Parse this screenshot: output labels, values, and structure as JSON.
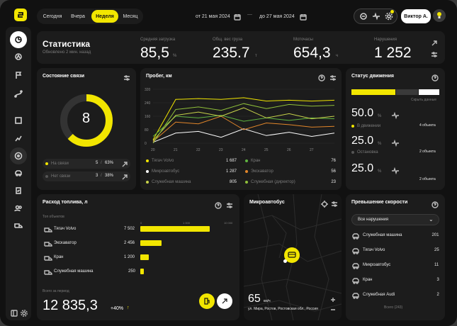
{
  "topbar": {
    "periods": [
      "Сегодня",
      "Вчера",
      "Неделя",
      "Месяц"
    ],
    "active_period": "Неделя",
    "date_from": "от 21 мая 2024",
    "date_to": "до 27 мая 2024",
    "user": "Виктор А."
  },
  "stats": {
    "title": "Статистика",
    "updated": "Обновлено 2 мин. назад",
    "items": [
      {
        "label": "Средняя загрузка",
        "value": "85,5",
        "unit": "%"
      },
      {
        "label": "Общ. вес груза",
        "value": "235.7",
        "unit": "т"
      },
      {
        "label": "Моточасы",
        "value": "654,3",
        "unit": "ч"
      },
      {
        "label": "Нарушения",
        "value": "1 252",
        "unit": ""
      }
    ]
  },
  "connection": {
    "title": "Состояние связи",
    "total": "8",
    "online_label": "На связи",
    "online_value": "5",
    "online_pct": "63%",
    "offline_label": "Нет связи",
    "offline_value": "3",
    "offline_pct": "38%"
  },
  "mileage": {
    "title": "Пробег, км",
    "legend": [
      {
        "name": "Тягач Volvo",
        "value": "1 687",
        "color": "#f2e600"
      },
      {
        "name": "Кран",
        "value": "76",
        "color": "#5fb340"
      },
      {
        "name": "Микроавтобус",
        "value": "1 287",
        "color": "#ffffff"
      },
      {
        "name": "Экскаватор",
        "value": "56",
        "color": "#e2862a"
      },
      {
        "name": "Служебная машина",
        "value": "805",
        "color": "#c7d24a"
      },
      {
        "name": "Служебная (директор)",
        "value": "23",
        "color": "#8fbf3a"
      }
    ]
  },
  "chart_data": {
    "type": "line",
    "x": [
      20,
      21,
      22,
      23,
      24,
      25,
      26,
      27,
      28
    ],
    "xticks": [
      "20",
      "21",
      "22",
      "23",
      "24",
      "25",
      "26",
      "27"
    ],
    "yticks": [
      "320",
      "240",
      "160",
      "80",
      "0"
    ],
    "ylim": [
      0,
      320
    ],
    "series": [
      {
        "name": "Тягач Volvo",
        "color": "#f2e600",
        "values": [
          20,
          260,
          265,
          260,
          270,
          250,
          255,
          250,
          255
        ]
      },
      {
        "name": "Кран",
        "color": "#5fb340",
        "values": [
          40,
          160,
          150,
          165,
          130,
          150,
          135,
          150,
          145
        ]
      },
      {
        "name": "Микроавтобус",
        "color": "#ffffff",
        "values": [
          5,
          60,
          70,
          35,
          85,
          45,
          65,
          40,
          60
        ]
      },
      {
        "name": "Экскаватор",
        "color": "#e2862a",
        "values": [
          10,
          125,
          115,
          160,
          80,
          120,
          110,
          95,
          100
        ]
      },
      {
        "name": "Служебная машина",
        "color": "#c7d24a",
        "values": [
          15,
          165,
          185,
          160,
          210,
          150,
          175,
          145,
          160
        ]
      },
      {
        "name": "Служебная (директор)",
        "color": "#8fbf3a",
        "values": [
          0,
          200,
          215,
          195,
          235,
          205,
          230,
          220,
          225
        ]
      }
    ]
  },
  "status": {
    "title": "Статус движения",
    "scale_label": "Скрыть данные",
    "items": [
      {
        "value": "50.0",
        "unit": "%",
        "label": "В движении",
        "count": "4 объекта"
      },
      {
        "value": "25.0",
        "unit": "%",
        "label": "Остановка",
        "count": "2 объекта"
      },
      {
        "value": "25.0",
        "unit": "%",
        "label": "",
        "count": "2 объекта"
      }
    ]
  },
  "fuel": {
    "title": "Расход топлива, л",
    "subtitle": "Топ объектов",
    "axis": [
      "0",
      "1 000",
      "10 000"
    ],
    "rows": [
      {
        "name": "Тягач Volvo",
        "value": "7 502",
        "fraction": 0.98
      },
      {
        "name": "Экскаватор",
        "value": "2 456",
        "fraction": 0.3
      },
      {
        "name": "Кран",
        "value": "1 200",
        "fraction": 0.12
      },
      {
        "name": "Служебная машина",
        "value": "250",
        "fraction": 0.05
      }
    ],
    "total_label": "Всего за период",
    "total": "12 835,3",
    "delta": "+40%"
  },
  "bus": {
    "title": "Микроавтобус",
    "speed": "65",
    "speed_unit": "км/ч",
    "address": "ул. Мира, Ростов, Ростовская обл., Россия"
  },
  "speeding": {
    "title": "Превышение скорости",
    "filter": "Все нарушения",
    "rows": [
      {
        "name": "Служебная машина",
        "value": "201"
      },
      {
        "name": "Тягач Volvo",
        "value": "25"
      },
      {
        "name": "Микроавтобус",
        "value": "11"
      },
      {
        "name": "Кран",
        "value": "3"
      },
      {
        "name": "Служебная Audi",
        "value": "2"
      }
    ],
    "footer": "Всего (243)"
  },
  "colors": {
    "accent": "#f2e600",
    "card": "#1c1c1c",
    "bg": "#111111"
  }
}
